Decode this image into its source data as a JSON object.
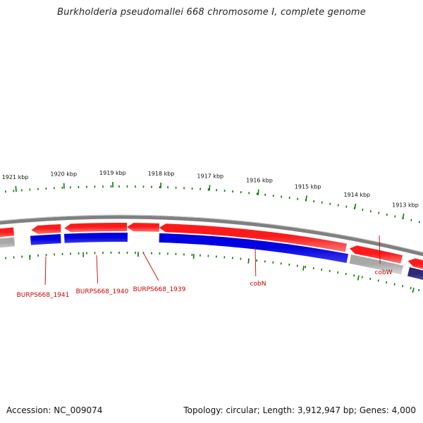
{
  "title": "Burkholderia pseudomallei 668 chromosome I, complete genome",
  "footer": {
    "accession": "Accession: NC_009074",
    "summary": "Topology: circular; Length: 3,912,947 bp; Genes: 4,000"
  },
  "colors": {
    "forward_gene": "#ee0000",
    "reverse_gene": "#0000dd",
    "grey_feature": "#b8b8b8",
    "purple_feature": "#3c3480",
    "backbone": "#808080",
    "tick": "#0a7a0a",
    "label": "#cc0000"
  },
  "scale_labels": [
    "1921 kbp",
    "1920 kbp",
    "1919 kbp",
    "1918 kbp",
    "1917 kbp",
    "1916 kbp",
    "1915 kbp",
    "1914 kbp",
    "1913 kbp"
  ],
  "gene_labels": [
    "BURPS668_1941",
    "BURPS668_1940",
    "BURPS668_1939",
    "cobN",
    "cobW"
  ]
}
